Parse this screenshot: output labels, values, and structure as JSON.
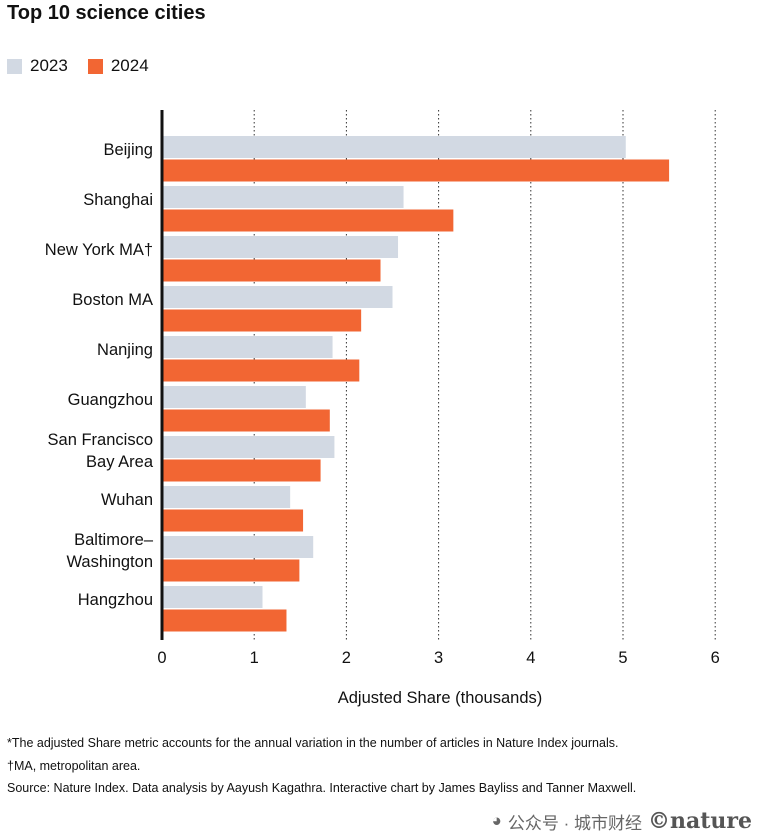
{
  "chart_data": {
    "type": "bar",
    "orientation": "horizontal",
    "title": "Top 10 science cities",
    "xlabel": "Adjusted Share (thousands)",
    "ylabel": "",
    "xlim": [
      0,
      6
    ],
    "xticks": [
      "0",
      "1",
      "2",
      "3",
      "4",
      "5",
      "6"
    ],
    "grid": "vertical dotted",
    "legend_placement": "top-left",
    "categories": [
      [
        "Beijing"
      ],
      [
        "Shanghai"
      ],
      [
        "New York MA†"
      ],
      [
        "Boston MA"
      ],
      [
        "Nanjing"
      ],
      [
        "Guangzhou"
      ],
      [
        "San Francisco",
        "Bay Area"
      ],
      [
        "Wuhan"
      ],
      [
        "Baltimore–",
        "Washington"
      ],
      [
        "Hangzhou"
      ]
    ],
    "series": [
      {
        "name": "2023",
        "color": "#d2d9e3",
        "values": [
          5.03,
          2.62,
          2.56,
          2.5,
          1.85,
          1.56,
          1.87,
          1.39,
          1.64,
          1.09
        ]
      },
      {
        "name": "2024",
        "color": "#f26633",
        "values": [
          5.5,
          3.16,
          2.37,
          2.16,
          2.14,
          1.82,
          1.72,
          1.53,
          1.49,
          1.35
        ]
      }
    ]
  },
  "footnotes": [
    "*The adjusted Share metric accounts for the annual variation in the number of articles in Nature Index journals.",
    "†MA, metropolitan area.",
    "Source: Nature Index. Data analysis by Aayush Kagathra. Interactive chart by James Bayliss and Tanner Maxwell."
  ],
  "watermark": {
    "text": "公众号 · 城市财经",
    "logo": "©nature"
  },
  "colors": {
    "axis": "#111111",
    "grid": "#333333"
  }
}
